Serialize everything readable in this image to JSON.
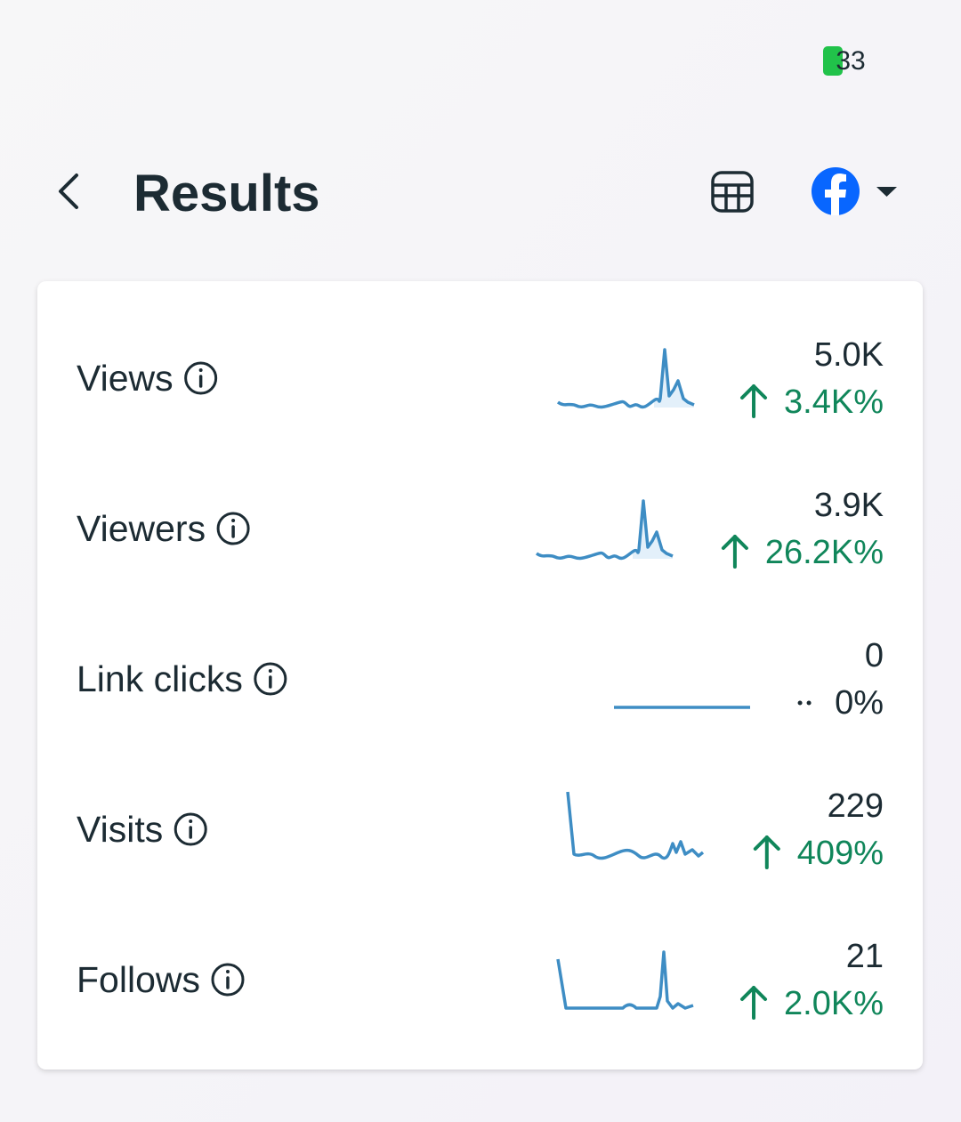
{
  "status_bar": {
    "battery": "33"
  },
  "header": {
    "title": "Results"
  },
  "metrics": [
    {
      "label": "Views",
      "value": "5.0K",
      "change": "3.4K%"
    },
    {
      "label": "Viewers",
      "value": "3.9K",
      "change": "26.2K%"
    },
    {
      "label": "Link clicks",
      "value": "0",
      "change": "0%"
    },
    {
      "label": "Visits",
      "value": "229",
      "change": "409%"
    },
    {
      "label": "Follows",
      "value": "21",
      "change": "2.0K%"
    }
  ]
}
